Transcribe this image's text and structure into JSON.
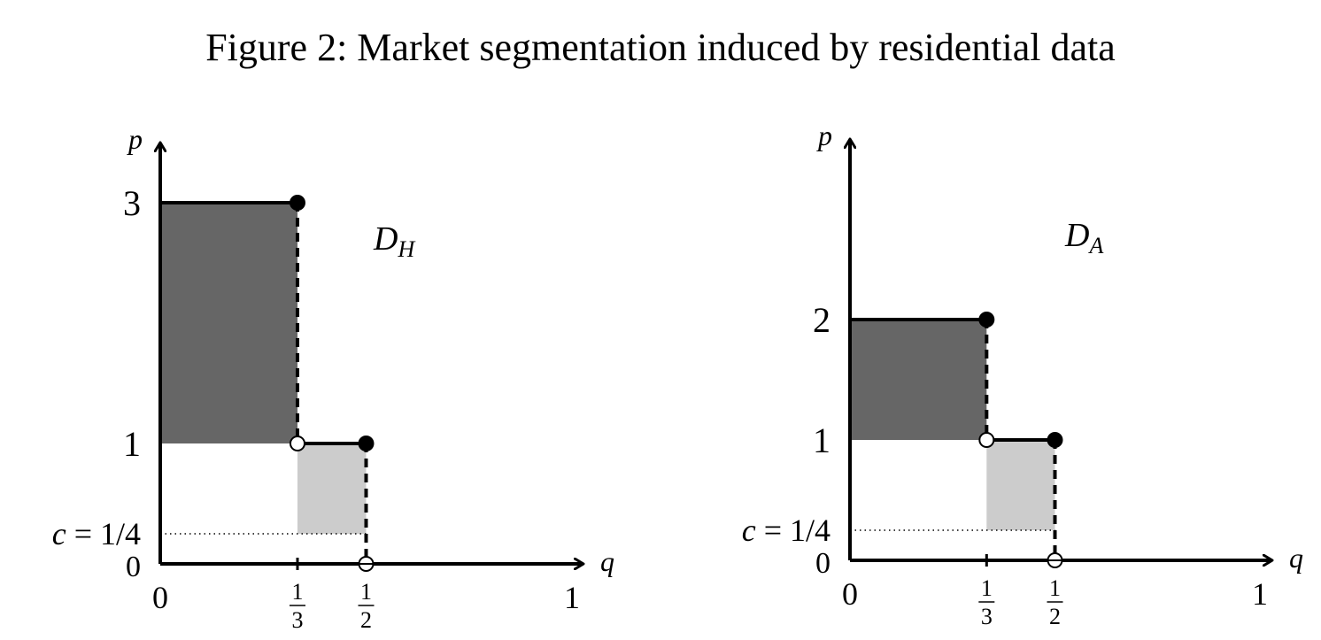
{
  "title": "Figure 2: Market segmentation induced by residential data",
  "chart_data": [
    {
      "type": "area",
      "name": "D_H",
      "label_main": "D",
      "label_sub": "H",
      "xlabel": "q",
      "ylabel": "p",
      "x_ticks": [
        {
          "value": 0,
          "num": "0",
          "den": ""
        },
        {
          "value": 0.3333,
          "num": "1",
          "den": "3"
        },
        {
          "value": 0.5,
          "num": "1",
          "den": "2"
        },
        {
          "value": 1,
          "num": "1",
          "den": ""
        }
      ],
      "y_ticks": [
        {
          "value": 0,
          "label": "0"
        },
        {
          "value": 0.25,
          "label": "c = 1/4"
        },
        {
          "value": 1,
          "label": "1"
        },
        {
          "value": 3,
          "label": "3"
        }
      ],
      "xlim": [
        0,
        1
      ],
      "ylim": [
        0,
        3.3
      ],
      "demand_steps": [
        {
          "q0": 0,
          "q1": 0.3333,
          "p": 3
        },
        {
          "q0": 0.3333,
          "q1": 0.5,
          "p": 1
        }
      ],
      "shaded": [
        {
          "q0": 0,
          "q1": 0.3333,
          "p0": 1,
          "p1": 3,
          "shade": "dark"
        },
        {
          "q0": 0.3333,
          "q1": 0.5,
          "p0": 0.25,
          "p1": 1,
          "shade": "light"
        }
      ],
      "cost": 0.25,
      "filled_points": [
        [
          0.3333,
          3
        ],
        [
          0.5,
          1
        ]
      ],
      "open_points": [
        [
          0.3333,
          1
        ],
        [
          0.5,
          0
        ]
      ],
      "colors": {
        "dark": "#666666",
        "light": "#cccccc"
      }
    },
    {
      "type": "area",
      "name": "D_A",
      "label_main": "D",
      "label_sub": "A",
      "xlabel": "q",
      "ylabel": "p",
      "x_ticks": [
        {
          "value": 0,
          "num": "0",
          "den": ""
        },
        {
          "value": 0.3333,
          "num": "1",
          "den": "3"
        },
        {
          "value": 0.5,
          "num": "1",
          "den": "2"
        },
        {
          "value": 1,
          "num": "1",
          "den": ""
        }
      ],
      "y_ticks": [
        {
          "value": 0,
          "label": "0"
        },
        {
          "value": 0.25,
          "label": "c = 1/4"
        },
        {
          "value": 1,
          "label": "1"
        },
        {
          "value": 2,
          "label": "2"
        }
      ],
      "xlim": [
        0,
        1
      ],
      "ylim": [
        0,
        3.5
      ],
      "demand_steps": [
        {
          "q0": 0,
          "q1": 0.3333,
          "p": 2
        },
        {
          "q0": 0.3333,
          "q1": 0.5,
          "p": 1
        }
      ],
      "shaded": [
        {
          "q0": 0,
          "q1": 0.3333,
          "p0": 1,
          "p1": 2,
          "shade": "dark"
        },
        {
          "q0": 0.3333,
          "q1": 0.5,
          "p0": 0.25,
          "p1": 1,
          "shade": "light"
        }
      ],
      "cost": 0.25,
      "filled_points": [
        [
          0.3333,
          2
        ],
        [
          0.5,
          1
        ]
      ],
      "open_points": [
        [
          0.3333,
          1
        ],
        [
          0.5,
          0
        ]
      ],
      "colors": {
        "dark": "#666666",
        "light": "#cccccc"
      }
    }
  ]
}
